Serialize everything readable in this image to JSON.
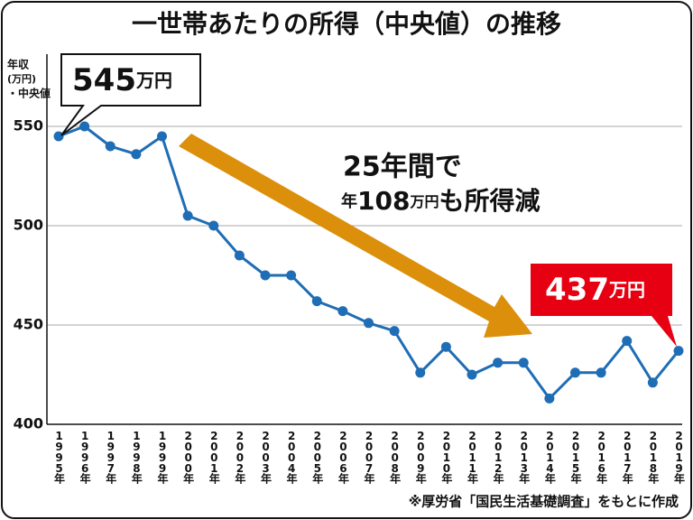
{
  "chart_data": {
    "type": "line",
    "title": "一世帯あたりの所得（中央値）の推移",
    "y_label": [
      "年収",
      "(万円)",
      "・中央値"
    ],
    "categories": [
      "1995年",
      "1996年",
      "1997年",
      "1998年",
      "1999年",
      "2000年",
      "2001年",
      "2002年",
      "2003年",
      "2004年",
      "2005年",
      "2006年",
      "2007年",
      "2008年",
      "2009年",
      "2010年",
      "2011年",
      "2012年",
      "2013年",
      "2014年",
      "2015年",
      "2016年",
      "2017年",
      "2018年",
      "2019年"
    ],
    "series": [
      {
        "name": "中央値",
        "color": "#1f6db5",
        "values": [
          545,
          550,
          540,
          536,
          545,
          505,
          500,
          485,
          475,
          475,
          462,
          457,
          451,
          447,
          426,
          439,
          425,
          431,
          431,
          413,
          426,
          426,
          442,
          421,
          437
        ]
      }
    ],
    "ylim": [
      400,
      550
    ],
    "yticks": [
      400,
      450,
      500,
      550
    ],
    "grid": true,
    "callouts": [
      {
        "number": "545",
        "unit": "万円"
      },
      {
        "number": "437",
        "unit": "万円"
      }
    ],
    "annotation": {
      "line1": "25年間で",
      "line2": [
        "年",
        "108",
        "万円",
        "も所得減"
      ]
    },
    "source": "※厚労省「国民生活基礎調査」をもとに作成"
  }
}
